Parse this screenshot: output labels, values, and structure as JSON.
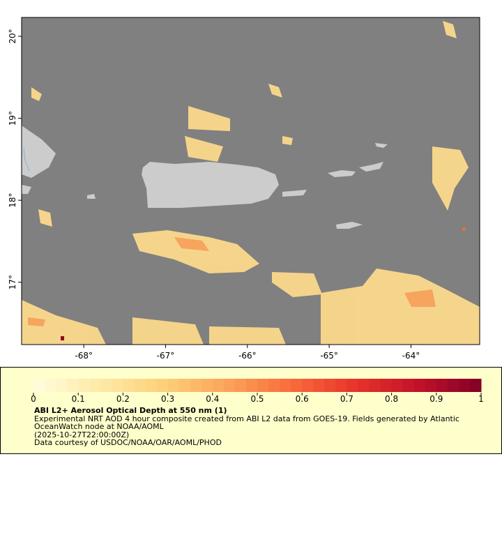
{
  "map": {
    "xlim": [
      -68.76,
      -63.16
    ],
    "ylim": [
      16.24,
      20.23
    ],
    "xticks": [
      {
        "value": -68,
        "label": "-68°"
      },
      {
        "value": -67,
        "label": "-67°"
      },
      {
        "value": -66,
        "label": "-66°"
      },
      {
        "value": -65,
        "label": "-65°"
      },
      {
        "value": -64,
        "label": "-64°"
      }
    ],
    "yticks": [
      {
        "value": 17,
        "label": "17°"
      },
      {
        "value": 18,
        "label": "18°"
      },
      {
        "value": 19,
        "label": "19°"
      },
      {
        "value": 20,
        "label": "20°"
      }
    ]
  },
  "colorbar": {
    "lim": [
      0,
      1
    ],
    "ticks": [
      0,
      0.1,
      0.2,
      0.3,
      0.4,
      0.5,
      0.6,
      0.7,
      0.8,
      0.9,
      1
    ],
    "colors": [
      "#fffde0",
      "#feeaa8",
      "#fdd27a",
      "#fca55a",
      "#f86d3c",
      "#e8352a",
      "#c3122a",
      "#800026"
    ]
  },
  "legend": {
    "title": "ABI L2+ Aerosol Optical Depth at 550 nm (1)",
    "description": "Experimental NRT AOD 4 hour composite created from ABI L2 data from GOES-19. Fields generated by Atlantic OceanWatch node at NOAA/AOML",
    "time": "(2025-10-27T22:00:00Z)",
    "credit": "Data courtesy of USDOC/NOAA/OAR/AOML/PHOD"
  }
}
